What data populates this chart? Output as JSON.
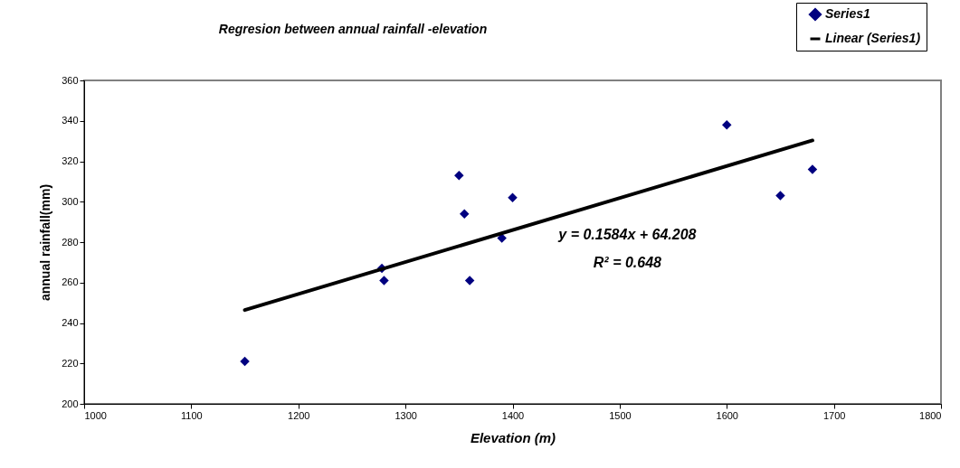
{
  "chart_data": {
    "type": "scatter",
    "title": "Regresion  between annual rainfall -elevation",
    "xlabel": "Elevation (m)",
    "ylabel": "annual rainfall(mm)",
    "xlim": [
      1000,
      1800
    ],
    "xticks": [
      1000,
      1100,
      1200,
      1300,
      1400,
      1500,
      1600,
      1700,
      1800
    ],
    "ylim": [
      200,
      360
    ],
    "yticks": [
      200,
      220,
      240,
      260,
      280,
      300,
      320,
      340,
      360
    ],
    "grid": false,
    "legend": "top right",
    "series": [
      {
        "name": "Series1",
        "color": "#000080",
        "marker": "diamond",
        "x": [
          1150,
          1278,
          1280,
          1350,
          1355,
          1360,
          1390,
          1400,
          1600,
          1650,
          1680
        ],
        "values": [
          221,
          267,
          261,
          313,
          294,
          261,
          282,
          302,
          338,
          303,
          316
        ]
      },
      {
        "name": "Linear (Series1)",
        "type": "line",
        "color": "#000000",
        "x": [
          1150,
          1680
        ],
        "values": [
          246.4,
          330.3
        ],
        "line_style": "solid",
        "marker": "none"
      }
    ],
    "annotations": [
      "y = 0.1584x + 64.208",
      "R² = 0.648"
    ]
  }
}
